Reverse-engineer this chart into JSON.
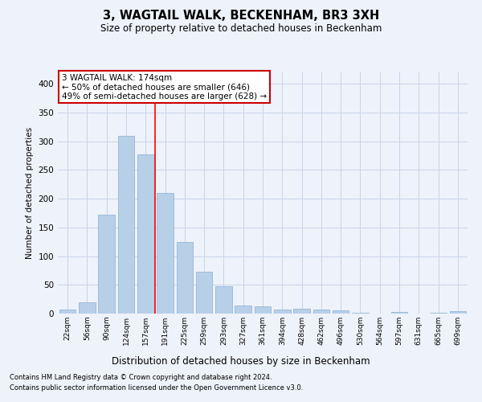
{
  "title": "3, WAGTAIL WALK, BECKENHAM, BR3 3XH",
  "subtitle": "Size of property relative to detached houses in Beckenham",
  "xlabel": "Distribution of detached houses by size in Beckenham",
  "ylabel": "Number of detached properties",
  "categories": [
    "22sqm",
    "56sqm",
    "90sqm",
    "124sqm",
    "157sqm",
    "191sqm",
    "225sqm",
    "259sqm",
    "293sqm",
    "327sqm",
    "361sqm",
    "394sqm",
    "428sqm",
    "462sqm",
    "496sqm",
    "530sqm",
    "564sqm",
    "597sqm",
    "631sqm",
    "665sqm",
    "699sqm"
  ],
  "values": [
    7,
    20,
    172,
    310,
    277,
    210,
    125,
    73,
    48,
    14,
    12,
    7,
    8,
    7,
    5,
    2,
    0,
    3,
    0,
    1,
    4
  ],
  "bar_color": "#b8cfe8",
  "bar_edge_color": "#8aafd4",
  "grid_color": "#c8d4e8",
  "background_color": "#eef2fa",
  "red_line_x": 4.5,
  "annotation_text": "3 WAGTAIL WALK: 174sqm\n← 50% of detached houses are smaller (646)\n49% of semi-detached houses are larger (628) →",
  "annotation_box_color": "#ffffff",
  "annotation_box_edge_color": "#cc0000",
  "ylim": [
    0,
    420
  ],
  "yticks": [
    0,
    50,
    100,
    150,
    200,
    250,
    300,
    350,
    400
  ],
  "footer_line1": "Contains HM Land Registry data © Crown copyright and database right 2024.",
  "footer_line2": "Contains public sector information licensed under the Open Government Licence v3.0."
}
